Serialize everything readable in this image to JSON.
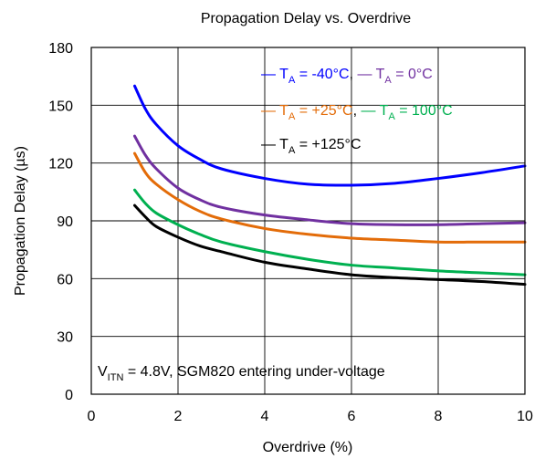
{
  "chart_data": {
    "type": "line",
    "title": "Propagation Delay vs. Overdrive",
    "xlabel": "Overdrive (%)",
    "ylabel": "Propagation Delay (µs)",
    "xlim": [
      0,
      10
    ],
    "ylim": [
      0,
      180
    ],
    "xticks": [
      0,
      2,
      4,
      6,
      8,
      10
    ],
    "yticks": [
      0,
      30,
      60,
      90,
      120,
      150,
      180
    ],
    "grid": true,
    "legend_position": "top-right",
    "series": [
      {
        "name": "T_A = -40°C",
        "color": "#0000ff",
        "x": [
          1,
          1.25,
          1.5,
          2,
          2.5,
          3,
          4,
          5,
          6,
          7,
          8,
          9,
          10
        ],
        "y": [
          160,
          148,
          140,
          129,
          122,
          117,
          112,
          109,
          108.5,
          109.5,
          112,
          115,
          118.5
        ]
      },
      {
        "name": "T_A = 0°C",
        "color": "#7030a0",
        "x": [
          1,
          1.25,
          1.5,
          2,
          2.5,
          3,
          4,
          5,
          6,
          7,
          8,
          9,
          10
        ],
        "y": [
          134,
          124,
          117,
          107,
          101,
          97,
          93,
          90.5,
          88.5,
          88,
          88,
          88.5,
          89
        ]
      },
      {
        "name": "T_A = +25°C",
        "color": "#e36c09",
        "x": [
          1,
          1.25,
          1.5,
          2,
          2.5,
          3,
          4,
          5,
          6,
          7,
          8,
          9,
          10
        ],
        "y": [
          125,
          115,
          109,
          101,
          95,
          91,
          86,
          83,
          81,
          80,
          79,
          79,
          79
        ]
      },
      {
        "name": "T_A = 100°C",
        "color": "#00b050",
        "x": [
          1,
          1.25,
          1.5,
          2,
          2.5,
          3,
          4,
          5,
          6,
          7,
          8,
          9,
          10
        ],
        "y": [
          106,
          99,
          94,
          88,
          83,
          79,
          74,
          70,
          67,
          65.5,
          64,
          63,
          62
        ]
      },
      {
        "name": "T_A = +125°C",
        "color": "#000000",
        "x": [
          1,
          1.25,
          1.5,
          2,
          2.5,
          3,
          4,
          5,
          6,
          7,
          8,
          9,
          10
        ],
        "y": [
          98,
          92,
          87,
          81.5,
          77,
          74,
          68.5,
          65,
          62,
          60.5,
          59.5,
          58.5,
          57
        ]
      }
    ],
    "legend": {
      "marker": "—",
      "t_base": "T",
      "t_sub": "A",
      "rows": [
        [
          {
            "series": 0,
            "rest": " = -40°C",
            "sep": ", "
          },
          {
            "series": 1,
            "rest": " = 0°C",
            "sep": ""
          }
        ],
        [
          {
            "series": 2,
            "rest": " = +25°C",
            "sep": ", "
          },
          {
            "series": 3,
            "rest": " = 100°C",
            "sep": ""
          }
        ],
        [
          {
            "series": 4,
            "rest": " = +125°C",
            "sep": ""
          }
        ]
      ]
    },
    "annotation": {
      "base": "V",
      "sub": "ITN",
      "rest": " = 4.8V, SGM820 entering under-voltage"
    }
  }
}
